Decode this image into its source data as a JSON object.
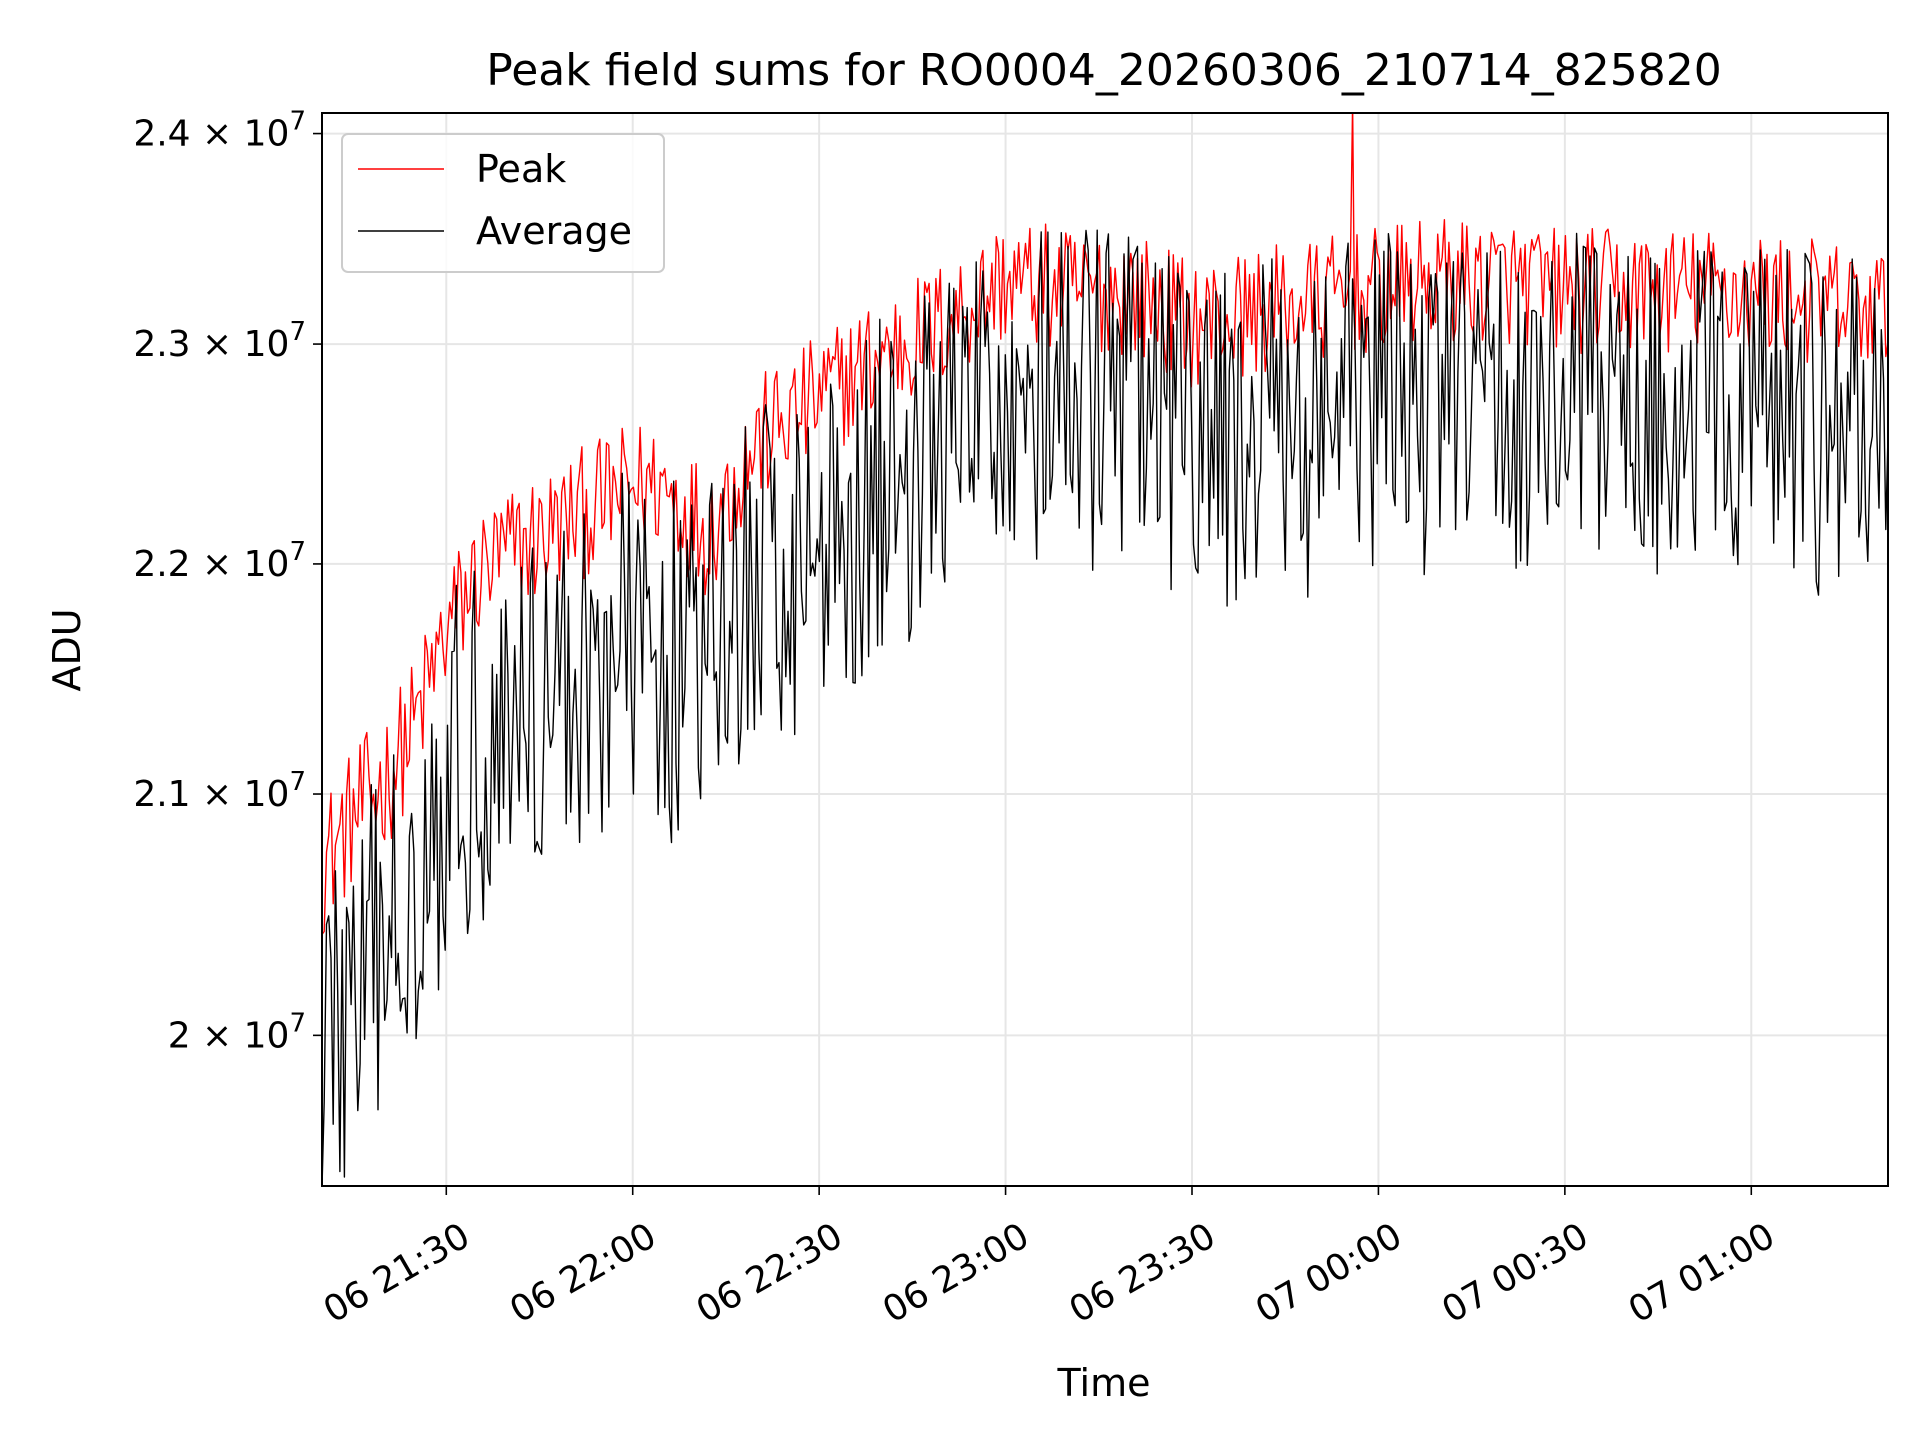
{
  "chart_data": {
    "type": "line",
    "title": "Peak field sums for RO0004_20260306_210714_825820",
    "xlabel": "Time",
    "ylabel": "ADU",
    "x_range_minutes_since_2026-03-06_21:10": [
      0,
      252
    ],
    "ylim": [
      19400000,
      24100000
    ],
    "grid": true,
    "legend_position": "top-left",
    "x_ticks": [
      {
        "label": "06 21:30",
        "value": 20
      },
      {
        "label": "06 22:00",
        "value": 50
      },
      {
        "label": "06 22:30",
        "value": 80
      },
      {
        "label": "06 23:00",
        "value": 110
      },
      {
        "label": "06 23:30",
        "value": 140
      },
      {
        "label": "07 00:00",
        "value": 170
      },
      {
        "label": "07 00:30",
        "value": 200
      },
      {
        "label": "07 01:00",
        "value": 230
      }
    ],
    "y_ticks": [
      {
        "mantissa": "2",
        "exponent": "7",
        "value": 20000000
      },
      {
        "mantissa": "2.1",
        "exponent": "7",
        "value": 21000000
      },
      {
        "mantissa": "2.2",
        "exponent": "7",
        "value": 22000000
      },
      {
        "mantissa": "2.3",
        "exponent": "7",
        "value": 23000000
      },
      {
        "mantissa": "2.4",
        "exponent": "7",
        "value": 24000000
      }
    ],
    "times_sign": "×",
    "series": [
      {
        "name": "Peak",
        "color": "#ff0000",
        "noise_amplitude": 300000,
        "spikes": [
          {
            "x": 166,
            "y": 24150000
          }
        ],
        "trend": [
          {
            "x": 0,
            "y": 20700000
          },
          {
            "x": 5,
            "y": 20900000
          },
          {
            "x": 10,
            "y": 21050000
          },
          {
            "x": 15,
            "y": 21300000
          },
          {
            "x": 20,
            "y": 21700000
          },
          {
            "x": 25,
            "y": 21950000
          },
          {
            "x": 30,
            "y": 22050000
          },
          {
            "x": 40,
            "y": 22200000
          },
          {
            "x": 50,
            "y": 22350000
          },
          {
            "x": 55,
            "y": 22350000
          },
          {
            "x": 62,
            "y": 22150000
          },
          {
            "x": 70,
            "y": 22550000
          },
          {
            "x": 80,
            "y": 22750000
          },
          {
            "x": 90,
            "y": 22950000
          },
          {
            "x": 100,
            "y": 23100000
          },
          {
            "x": 110,
            "y": 23300000
          },
          {
            "x": 120,
            "y": 23250000
          },
          {
            "x": 130,
            "y": 23250000
          },
          {
            "x": 140,
            "y": 23100000
          },
          {
            "x": 150,
            "y": 23150000
          },
          {
            "x": 160,
            "y": 23200000
          },
          {
            "x": 170,
            "y": 23250000
          },
          {
            "x": 180,
            "y": 23300000
          },
          {
            "x": 190,
            "y": 23300000
          },
          {
            "x": 200,
            "y": 23250000
          },
          {
            "x": 210,
            "y": 23250000
          },
          {
            "x": 220,
            "y": 23250000
          },
          {
            "x": 230,
            "y": 23250000
          },
          {
            "x": 240,
            "y": 23200000
          },
          {
            "x": 252,
            "y": 23150000
          }
        ]
      },
      {
        "name": "Average",
        "color": "#000000",
        "noise_amplitude": 800000,
        "spikes": [],
        "trend": [
          {
            "x": 0,
            "y": 20050000
          },
          {
            "x": 5,
            "y": 20100000
          },
          {
            "x": 10,
            "y": 20350000
          },
          {
            "x": 15,
            "y": 20750000
          },
          {
            "x": 20,
            "y": 21050000
          },
          {
            "x": 25,
            "y": 21250000
          },
          {
            "x": 30,
            "y": 21350000
          },
          {
            "x": 40,
            "y": 21500000
          },
          {
            "x": 50,
            "y": 21650000
          },
          {
            "x": 55,
            "y": 21600000
          },
          {
            "x": 62,
            "y": 21550000
          },
          {
            "x": 70,
            "y": 21950000
          },
          {
            "x": 80,
            "y": 22100000
          },
          {
            "x": 90,
            "y": 22350000
          },
          {
            "x": 100,
            "y": 22550000
          },
          {
            "x": 110,
            "y": 22800000
          },
          {
            "x": 120,
            "y": 22750000
          },
          {
            "x": 130,
            "y": 22800000
          },
          {
            "x": 140,
            "y": 22550000
          },
          {
            "x": 150,
            "y": 22600000
          },
          {
            "x": 160,
            "y": 22650000
          },
          {
            "x": 170,
            "y": 22750000
          },
          {
            "x": 180,
            "y": 22750000
          },
          {
            "x": 190,
            "y": 22750000
          },
          {
            "x": 200,
            "y": 22750000
          },
          {
            "x": 210,
            "y": 22750000
          },
          {
            "x": 220,
            "y": 22700000
          },
          {
            "x": 230,
            "y": 22700000
          },
          {
            "x": 240,
            "y": 22650000
          },
          {
            "x": 252,
            "y": 22600000
          }
        ]
      }
    ],
    "samples_per_series": 700
  }
}
